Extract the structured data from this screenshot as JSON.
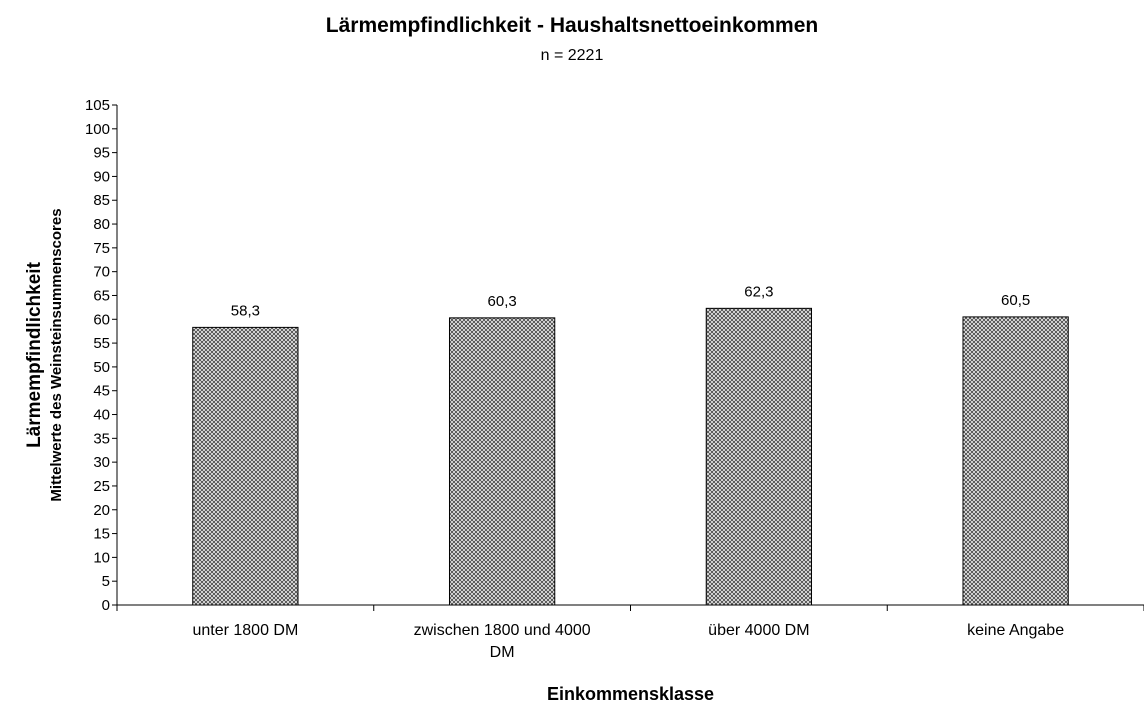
{
  "chart_data": {
    "type": "bar",
    "title": "Lärmempfindlichkeit - Haushaltsnettoeinkommen",
    "subtitle": "n = 2221",
    "xlabel": "Einkommensklasse",
    "ylabel": "Lärmempfindlichkeit",
    "ylabel_sub": "Mittelwerte des Weinsteinsummenscores",
    "ylim": [
      0,
      105
    ],
    "ytick_step": 5,
    "categories": [
      [
        "unter 1800 DM"
      ],
      [
        "zwischen 1800 und 4000",
        "DM"
      ],
      [
        "über 4000 DM"
      ],
      [
        "keine Angabe"
      ]
    ],
    "values": [
      58.3,
      60.3,
      62.3,
      60.5
    ],
    "value_labels": [
      "58,3",
      "60,3",
      "62,3",
      "60,5"
    ],
    "grid": false,
    "legend": "none",
    "bar_fill": "crosshatch gray pattern",
    "colors": {
      "bar_pattern_bg": "#ffffff",
      "bar_pattern_fg": "#505050",
      "axis": "#000000"
    }
  }
}
